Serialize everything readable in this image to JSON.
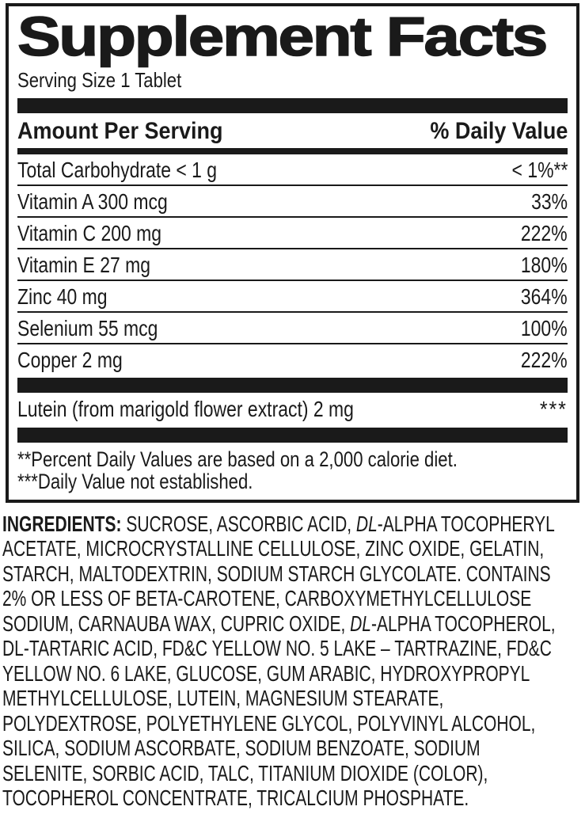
{
  "colors": {
    "ink": "#1a1a1a",
    "background": "#ffffff"
  },
  "label": {
    "title": "Supplement Facts",
    "serving_size": "Serving Size 1 Tablet",
    "columns": {
      "amount": "Amount Per Serving",
      "daily_value": "% Daily Value"
    },
    "rows": [
      {
        "name": "Total Carbohydrate < 1 g",
        "dv": "< 1%**"
      },
      {
        "name": "Vitamin A 300 mcg",
        "dv": "33%"
      },
      {
        "name": "Vitamin C 200 mg",
        "dv": "222%"
      },
      {
        "name": "Vitamin E 27 mg",
        "dv": "180%"
      },
      {
        "name": "Zinc 40 mg",
        "dv": "364%"
      },
      {
        "name": "Selenium 55 mcg",
        "dv": "100%"
      },
      {
        "name": "Copper 2 mg",
        "dv": "222%"
      }
    ],
    "other_row": {
      "name": "Lutein (from marigold flower extract) 2 mg",
      "dv": "***"
    },
    "footnotes": [
      "**Percent Daily Values are based on a 2,000 calorie diet.",
      "***Daily Value not established."
    ]
  },
  "ingredients": {
    "lines": [
      [
        {
          "t": "INGREDIENTS:",
          "b": true
        },
        {
          "t": " SUCROSE, ASCORBIC ACID, "
        },
        {
          "t": "DL",
          "i": true
        },
        {
          "t": "-ALPHA TOCOPHERYL"
        }
      ],
      [
        {
          "t": "ACETATE, MICROCRYSTALLINE CELLULOSE, ZINC OXIDE, GELATIN,"
        }
      ],
      [
        {
          "t": "STARCH, MALTODEXTRIN, SODIUM STARCH GLYCOLATE. CONTAINS"
        }
      ],
      [
        {
          "t": "2% OR LESS OF BETA-CAROTENE, CARBOXYMETHYLCELLULOSE"
        }
      ],
      [
        {
          "t": "SODIUM, CARNAUBA WAX, CUPRIC OXIDE, "
        },
        {
          "t": "DL",
          "i": true
        },
        {
          "t": "-ALPHA TOCOPHEROL,"
        }
      ],
      [
        {
          "t": "DL-TARTARIC ACID, FD&C YELLOW NO. 5 LAKE – TARTRAZINE, FD&C"
        }
      ],
      [
        {
          "t": "YELLOW NO. 6 LAKE, GLUCOSE, GUM ARABIC, HYDROXYPROPYL"
        }
      ],
      [
        {
          "t": "METHYLCELLULOSE, LUTEIN, MAGNESIUM STEARATE,"
        }
      ],
      [
        {
          "t": "POLYDEXTROSE, POLYETHYLENE GLYCOL, POLYVINYL ALCOHOL,"
        }
      ],
      [
        {
          "t": "SILICA, SODIUM ASCORBATE, SODIUM BENZOATE, SODIUM"
        }
      ],
      [
        {
          "t": "SELENITE, SORBIC ACID, TALC, TITANIUM DIOXIDE (COLOR),"
        }
      ],
      [
        {
          "t": "TOCOPHEROL CONCENTRATE, TRICALCIUM PHOSPHATE."
        }
      ]
    ]
  }
}
